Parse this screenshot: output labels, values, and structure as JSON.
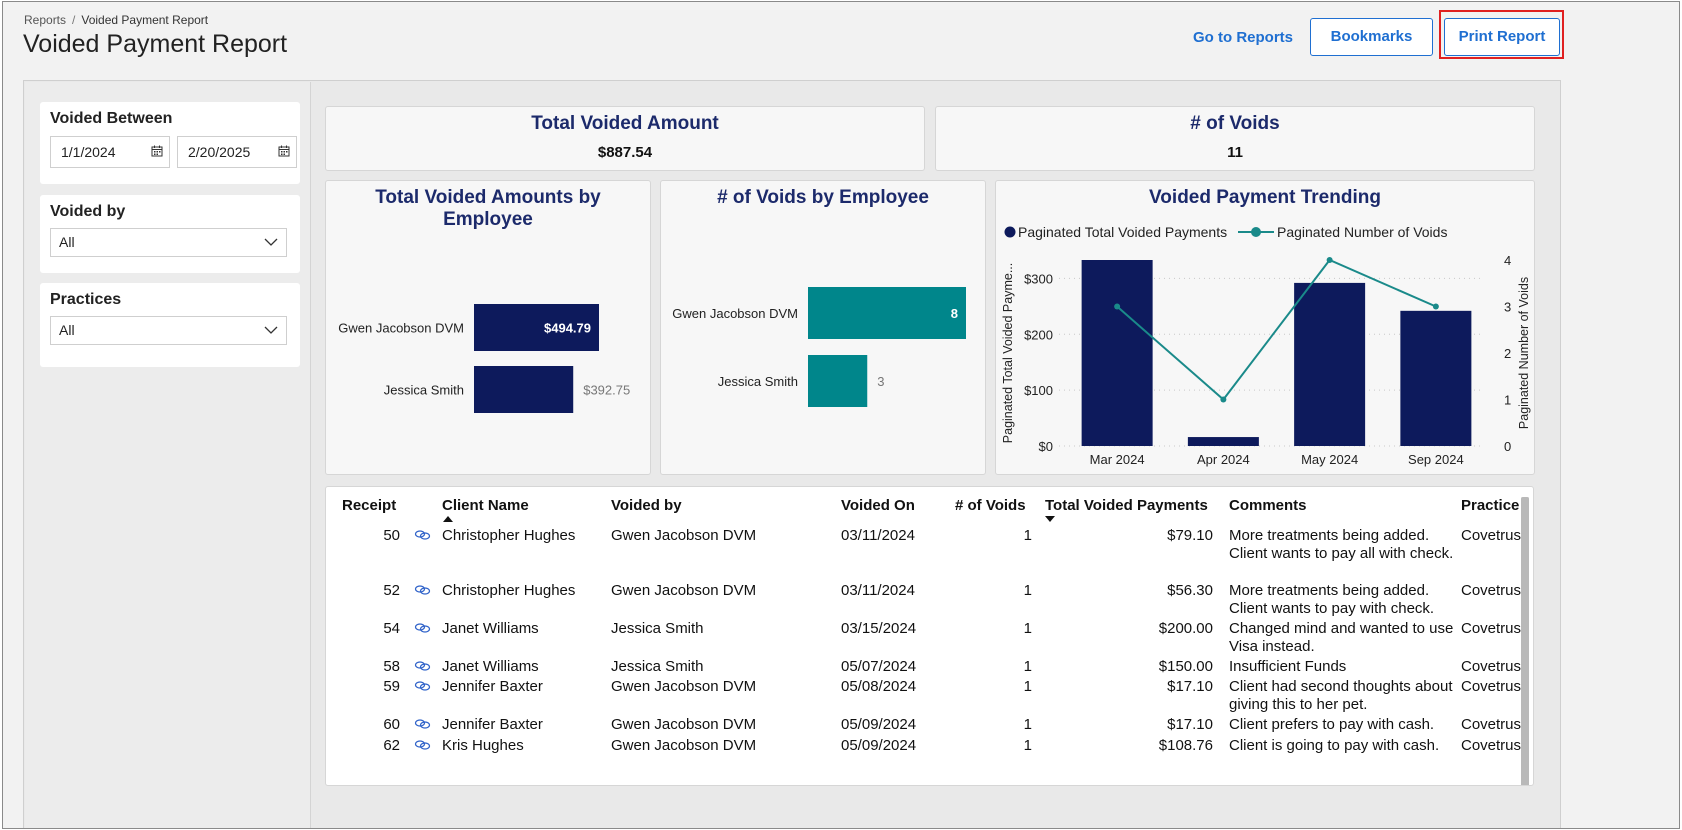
{
  "breadcrumb": {
    "parent": "Reports",
    "separator": "/",
    "current": "Voided Payment Report"
  },
  "page": {
    "title": "Voided Payment Report"
  },
  "header": {
    "go_to_reports": "Go to Reports",
    "bookmarks": "Bookmarks",
    "print_report": "Print Report"
  },
  "filters": {
    "voided_between": {
      "label": "Voided Between",
      "from": "1/1/2024",
      "to": "2/20/2025"
    },
    "voided_by": {
      "label": "Voided by",
      "value": "All"
    },
    "practices": {
      "label": "Practices",
      "value": "All"
    }
  },
  "kpis": {
    "total_voided": {
      "title": "Total Voided Amount",
      "value": "$887.54"
    },
    "num_voids": {
      "title": "# of Voids",
      "value": "11"
    }
  },
  "colors": {
    "navy": "#0d1a5c",
    "teal": "#00868b",
    "title": "#1c2a6b"
  },
  "chart_data": [
    {
      "type": "bar",
      "orientation": "horizontal",
      "title": "Total Voided Amounts by Employee",
      "title_lines": [
        "Total Voided Amounts by",
        "Employee"
      ],
      "categories": [
        "Gwen Jacobson DVM",
        "Jessica Smith"
      ],
      "values": [
        494.79,
        392.75
      ],
      "labels": [
        "$494.79",
        "$392.75"
      ],
      "color": "#0d1a5c"
    },
    {
      "type": "bar",
      "orientation": "horizontal",
      "title": "# of Voids by Employee",
      "categories": [
        "Gwen Jacobson DVM",
        "Jessica Smith"
      ],
      "values": [
        8,
        3
      ],
      "labels": [
        "8",
        "3"
      ],
      "color": "#00868b"
    },
    {
      "type": "bar+line",
      "title": "Voided Payment Trending",
      "categories": [
        "Mar 2024",
        "Apr 2024",
        "May 2024",
        "Sep 2024"
      ],
      "series": [
        {
          "name": "Paginated Total Voided Payments",
          "type": "bar",
          "axis": "left",
          "values": [
            333,
            16,
            292,
            242
          ],
          "color": "#0d1a5c"
        },
        {
          "name": "Paginated Number of Voids",
          "type": "line",
          "axis": "right",
          "values": [
            3,
            1,
            4,
            3
          ],
          "color": "#1a8a8a"
        }
      ],
      "ylabel_left": "Paginated Total Voided Payme...",
      "ylabel_right": "Paginated Number of Voids",
      "ylim_left": [
        0,
        333
      ],
      "yticks_left": [
        0,
        100,
        200,
        300
      ],
      "ytick_labels_left": [
        "$0",
        "$100",
        "$200",
        "$300"
      ],
      "ylim_right": [
        0,
        4
      ],
      "yticks_right": [
        0,
        1,
        2,
        3,
        4
      ],
      "ytick_labels_right": [
        "0",
        "1",
        "2",
        "3",
        "4"
      ],
      "legend": "top-left"
    }
  ],
  "table": {
    "columns": [
      "Receipt",
      "Client Name",
      "Voided by",
      "Voided On",
      "# of Voids",
      "Total Voided Payments",
      "Comments",
      "Practice"
    ],
    "rows": [
      {
        "receipt": "50",
        "client": "Christopher Hughes",
        "voided_by": "Gwen Jacobson DVM",
        "voided_on": "03/11/2024",
        "voids": "1",
        "total": "$79.10",
        "comments": "More treatments being added. Client wants to pay all with check.",
        "practice": "Covetrus"
      },
      {
        "receipt": "52",
        "client": "Christopher Hughes",
        "voided_by": "Gwen Jacobson DVM",
        "voided_on": "03/11/2024",
        "voids": "1",
        "total": "$56.30",
        "comments": "More treatments being added. Client wants to pay with check.",
        "practice": "Covetrus"
      },
      {
        "receipt": "54",
        "client": "Janet Williams",
        "voided_by": "Jessica Smith",
        "voided_on": "03/15/2024",
        "voids": "1",
        "total": "$200.00",
        "comments": "Changed mind and wanted to use Visa instead.",
        "practice": "Covetrus"
      },
      {
        "receipt": "58",
        "client": "Janet Williams",
        "voided_by": "Jessica Smith",
        "voided_on": "05/07/2024",
        "voids": "1",
        "total": "$150.00",
        "comments": "Insufficient Funds",
        "practice": "Covetrus"
      },
      {
        "receipt": "59",
        "client": "Jennifer Baxter",
        "voided_by": "Gwen Jacobson DVM",
        "voided_on": "05/08/2024",
        "voids": "1",
        "total": "$17.10",
        "comments": "Client had second thoughts about giving this to her pet.",
        "practice": "Covetrus"
      },
      {
        "receipt": "60",
        "client": "Jennifer Baxter",
        "voided_by": "Gwen Jacobson DVM",
        "voided_on": "05/09/2024",
        "voids": "1",
        "total": "$17.10",
        "comments": "Client prefers to pay with cash.",
        "practice": "Covetrus"
      },
      {
        "receipt": "62",
        "client": "Kris Hughes",
        "voided_by": "Gwen Jacobson DVM",
        "voided_on": "05/09/2024",
        "voids": "1",
        "total": "$108.76",
        "comments": "Client is going to pay with cash.",
        "practice": "Covetrus"
      }
    ]
  }
}
